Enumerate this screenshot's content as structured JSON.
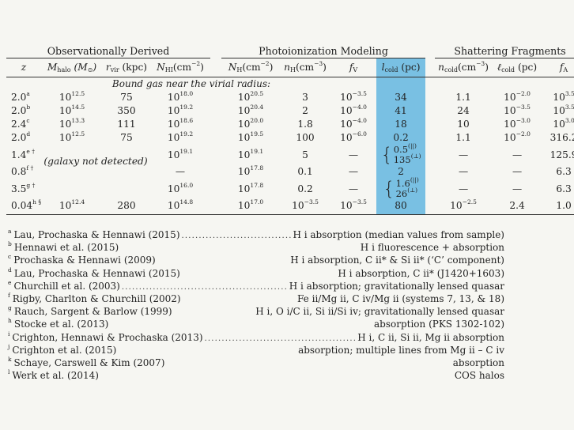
{
  "groups": [
    "Observationally Derived",
    "Photoionization Modeling",
    "Shattering Fragments"
  ],
  "section_label": "Bound gas near the virial radius:",
  "rows": [
    {
      "z": "2.0",
      "zsup": "a",
      "mhalo": "10",
      "mhalo_e": "12.5",
      "rvir": "75",
      "nhi": "10",
      "nhi_e": "18.0",
      "nh": "10",
      "nh_e": "20.5",
      "nH": "3",
      "nH_e": "",
      "fv": "10",
      "fv_e": "−3.5",
      "lcold": "34",
      "ncold": "1.1",
      "ncold_e": "",
      "lcold2": "10",
      "lcold2_e": "−2.0",
      "fa": "10",
      "fa_e": "3.5"
    },
    {
      "z": "2.0",
      "zsup": "b",
      "mhalo": "10",
      "mhalo_e": "14.5",
      "rvir": "350",
      "nhi": "10",
      "nhi_e": "19.2",
      "nh": "10",
      "nh_e": "20.4",
      "nH": "2",
      "nH_e": "",
      "fv": "10",
      "fv_e": "−4.0",
      "lcold": "41",
      "ncold": "24",
      "ncold_e": "",
      "lcold2": "10",
      "lcold2_e": "−3.5",
      "fa": "10",
      "fa_e": "3.5"
    },
    {
      "z": "2.4",
      "zsup": "c",
      "mhalo": "10",
      "mhalo_e": "13.3",
      "rvir": "111",
      "nhi": "10",
      "nhi_e": "18.6",
      "nh": "10",
      "nh_e": "20.0",
      "nH": "1.8",
      "nH_e": "",
      "fv": "10",
      "fv_e": "−4.0",
      "lcold": "18",
      "ncold": "10",
      "ncold_e": "",
      "lcold2": "10",
      "lcold2_e": "−3.0",
      "fa": "10",
      "fa_e": "3.0"
    },
    {
      "z": "2.0",
      "zsup": "d",
      "mhalo": "10",
      "mhalo_e": "12.5",
      "rvir": "75",
      "nhi": "10",
      "nhi_e": "19.2",
      "nh": "10",
      "nh_e": "19.5",
      "nH": "100",
      "nH_e": "",
      "fv": "10",
      "fv_e": "−6.0",
      "lcold": "0.2",
      "ncold": "1.1",
      "ncold_e": "",
      "lcold2": "10",
      "lcold2_e": "−2.0",
      "fa": "316.2",
      "fa_e": ""
    }
  ],
  "special_rows": {
    "r5": {
      "z": "1.4",
      "zsup": "e †",
      "nhi": "10",
      "nhi_e": "19.1",
      "nh": "10",
      "nh_e": "19.1",
      "nH": "5",
      "fv": "—",
      "l_a": "0.5",
      "l_a_sup": "(||)",
      "l_b": "135",
      "l_b_sup": "(⊥)",
      "ncold": "—",
      "lcold2": "—",
      "fa": "125.9"
    },
    "r6": {
      "z": "0.8",
      "zsup": "f †",
      "nhi": "—",
      "nh": "10",
      "nh_e": "17.8",
      "nH": "0.1",
      "fv": "—",
      "lcold": "2",
      "ncold": "—",
      "lcold2": "—",
      "fa": "6.3"
    },
    "r7": {
      "z": "3.5",
      "zsup": "g †",
      "nhi": "10",
      "nhi_e": "16.0",
      "nh": "10",
      "nh_e": "17.8",
      "nH": "0.2",
      "fv": "—",
      "l_a": "1.6",
      "l_a_sup": "(||)",
      "l_b": "26",
      "l_b_sup": "(⊥)",
      "ncold": "—",
      "lcold2": "—",
      "fa": "6.3"
    },
    "r8": {
      "z": "0.04",
      "zsup": "h §",
      "mhalo": "10",
      "mhalo_e": "12.4",
      "rvir": "280",
      "nhi": "10",
      "nhi_e": "14.8",
      "nh": "10",
      "nh_e": "17.0",
      "nH": "10",
      "nH_e": "−3.5",
      "fv": "10",
      "fv_e": "−3.5",
      "lcold": "80",
      "ncold": "10",
      "ncold_e": "−2.5",
      "lcold2": "2.4",
      "fa": "1.0"
    },
    "not_detected": "(galaxy not detected)"
  },
  "notes": [
    {
      "key": "a",
      "ref": "Lau, Prochaska & Hennawi (2015)",
      "dots": true,
      "desc": "H i absorption (median values from sample)"
    },
    {
      "key": "b",
      "ref": "Hennawi et al. (2015)",
      "dots": false,
      "desc": "H i fluorescence + absorption"
    },
    {
      "key": "c",
      "ref": "Prochaska & Hennawi (2009)",
      "dots": false,
      "desc": "H i absorption, C ii* & Si ii* (‘C’ component)"
    },
    {
      "key": "d",
      "ref": "Lau, Prochaska & Hennawi (2015)",
      "dots": false,
      "desc": "H i absorption, C ii* (J1420+1603)"
    },
    {
      "key": "e",
      "ref": "Churchill et al. (2003)",
      "dots": true,
      "desc": "H i absorption; gravitationally lensed quasar"
    },
    {
      "key": "f",
      "ref": "Rigby, Charlton & Churchill (2002)",
      "dots": false,
      "desc": "Fe ii/Mg ii, C iv/Mg ii (systems 7, 13, & 18)"
    },
    {
      "key": "g",
      "ref": "Rauch, Sargent & Barlow (1999)",
      "dots": false,
      "desc": "H i, O i/C ii, Si ii/Si iv; gravitationally lensed quasar"
    },
    {
      "key": "h",
      "ref": "Stocke et al. (2013)",
      "dots": false,
      "desc": "absorption (PKS 1302-102)"
    },
    {
      "key": "i",
      "ref": "Crighton, Hennawi & Prochaska (2013)",
      "dots": true,
      "desc": "H i, C ii, Si ii, Mg ii absorption"
    },
    {
      "key": "j",
      "ref": "Crighton et al. (2015)",
      "dots": false,
      "desc": "absorption; multiple lines from Mg ii – C iv"
    },
    {
      "key": "k",
      "ref": "Schaye, Carswell & Kim (2007)",
      "dots": false,
      "desc": "absorption"
    },
    {
      "key": "l",
      "ref": "Werk et al. (2014)",
      "dots": false,
      "desc": "COS halos"
    }
  ],
  "colors": {
    "highlight": "#79c0e3",
    "background": "#f6f6f2",
    "text": "#222222"
  }
}
